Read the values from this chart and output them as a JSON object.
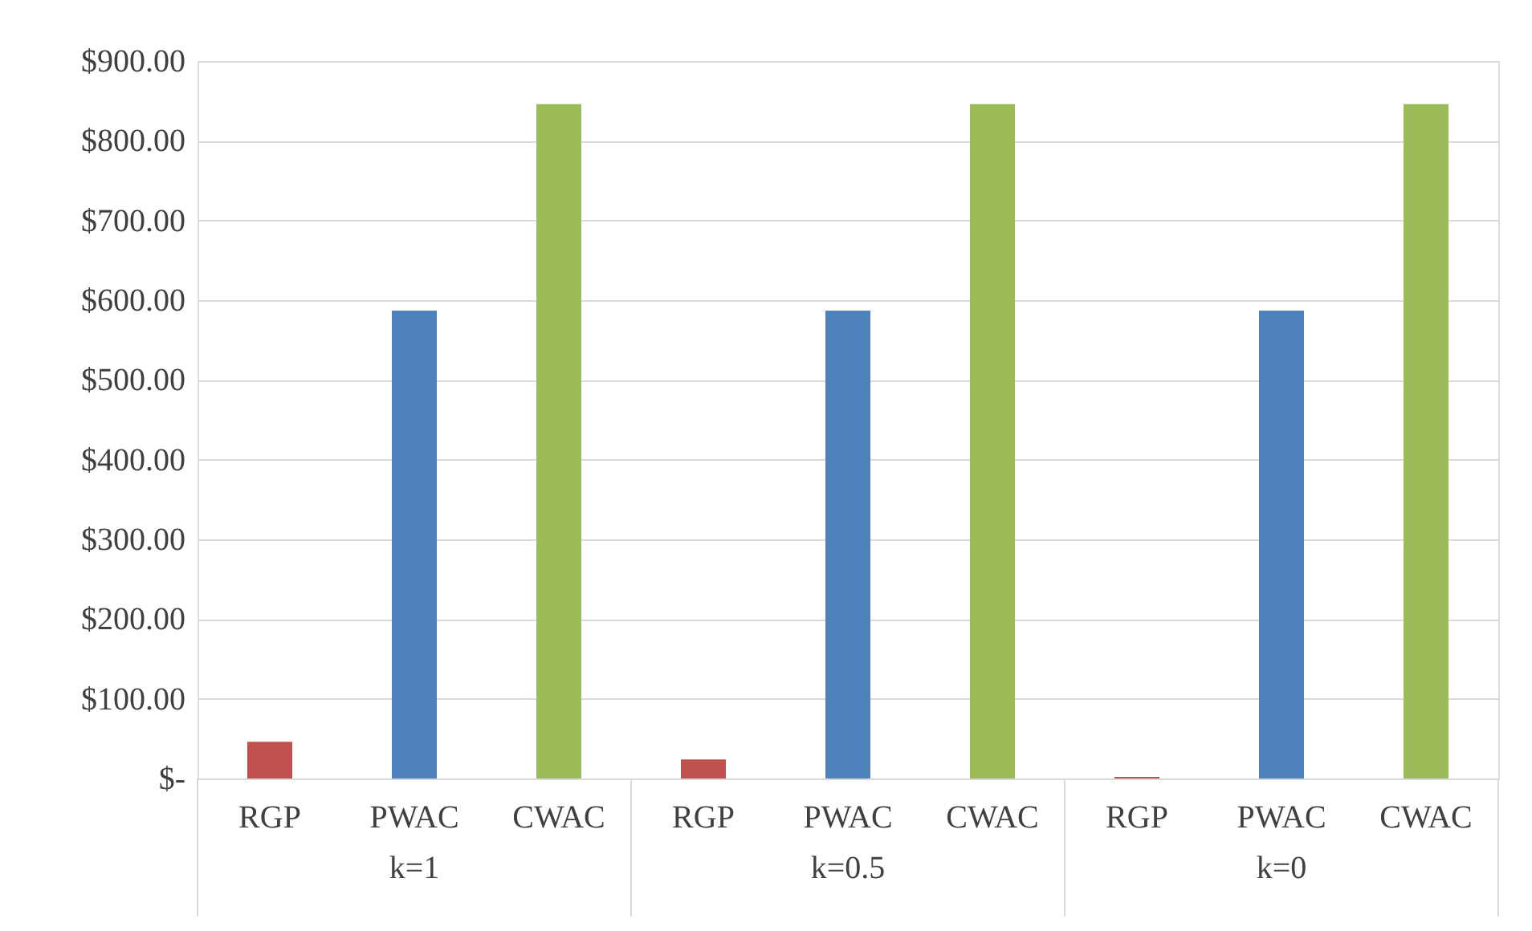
{
  "chart_data": {
    "type": "bar",
    "categories": [
      "RGP",
      "PWAC",
      "CWAC",
      "RGP",
      "PWAC",
      "CWAC",
      "RGP",
      "PWAC",
      "CWAC"
    ],
    "values": [
      46,
      587,
      846,
      24,
      587,
      846,
      2,
      587,
      846
    ],
    "colors": [
      "#c0504d",
      "#4f81bd",
      "#9bbb59",
      "#c0504d",
      "#4f81bd",
      "#9bbb59",
      "#c0504d",
      "#4f81bd",
      "#9bbb59"
    ],
    "annotations": [
      "k=1",
      "k=0.5",
      "k=0"
    ],
    "ylim": [
      0,
      900
    ],
    "yticks": [
      {
        "value": 0,
        "label": "$-"
      },
      {
        "value": 100,
        "label": "$100.00"
      },
      {
        "value": 200,
        "label": "$200.00"
      },
      {
        "value": 300,
        "label": "$300.00"
      },
      {
        "value": 400,
        "label": "$400.00"
      },
      {
        "value": 500,
        "label": "$500.00"
      },
      {
        "value": 600,
        "label": "$600.00"
      },
      {
        "value": 700,
        "label": "$700.00"
      },
      {
        "value": 800,
        "label": "$800.00"
      },
      {
        "value": 900,
        "label": "$900.00"
      }
    ],
    "grid": "y"
  }
}
